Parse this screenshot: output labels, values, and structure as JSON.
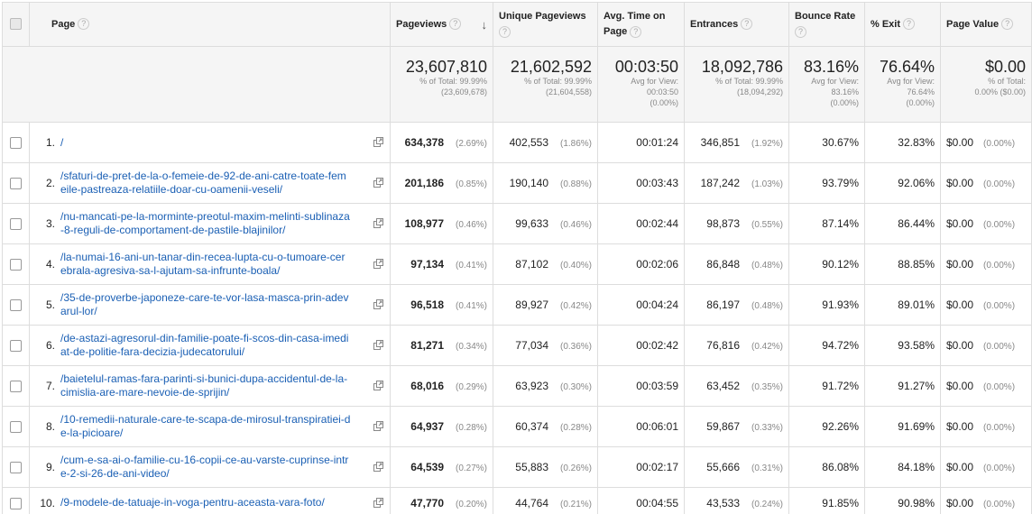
{
  "headers": {
    "page": "Page",
    "pageviews": "Pageviews",
    "unique_pageviews": "Unique Pageviews",
    "avg_time": "Avg. Time on Page",
    "entrances": "Entrances",
    "bounce_rate": "Bounce Rate",
    "exit": "% Exit",
    "page_value": "Page Value"
  },
  "summary": {
    "pageviews": {
      "value": "23,607,810",
      "line1": "% of Total: 99.99%",
      "line2": "(23,609,678)"
    },
    "unique_pageviews": {
      "value": "21,602,592",
      "line1": "% of Total: 99.99%",
      "line2": "(21,604,558)"
    },
    "avg_time": {
      "value": "00:03:50",
      "line1": "Avg for View:",
      "line2": "00:03:50",
      "line3": "(0.00%)"
    },
    "entrances": {
      "value": "18,092,786",
      "line1": "% of Total: 99.99%",
      "line2": "(18,094,292)"
    },
    "bounce_rate": {
      "value": "83.16%",
      "line1": "Avg for View:",
      "line2": "83.16%",
      "line3": "(0.00%)"
    },
    "exit": {
      "value": "76.64%",
      "line1": "Avg for View:",
      "line2": "76.64%",
      "line3": "(0.00%)"
    },
    "page_value": {
      "value": "$0.00",
      "line1": "% of Total:",
      "line2": "0.00% ($0.00)"
    }
  },
  "rows": [
    {
      "idx": "1.",
      "page": "/",
      "pv": "634,378",
      "pv_pct": "(2.69%)",
      "upv": "402,553",
      "upv_pct": "(1.86%)",
      "time": "00:01:24",
      "ent": "346,851",
      "ent_pct": "(1.92%)",
      "bounce": "30.67%",
      "exit": "32.83%",
      "value": "$0.00",
      "value_pct": "(0.00%)"
    },
    {
      "idx": "2.",
      "page": "/sfaturi-de-pret-de-la-o-femeie-de-92-de-ani-catre-toate-femeile-pastreaza-relatiile-doar-cu-oamenii-veseli/",
      "pv": "201,186",
      "pv_pct": "(0.85%)",
      "upv": "190,140",
      "upv_pct": "(0.88%)",
      "time": "00:03:43",
      "ent": "187,242",
      "ent_pct": "(1.03%)",
      "bounce": "93.79%",
      "exit": "92.06%",
      "value": "$0.00",
      "value_pct": "(0.00%)"
    },
    {
      "idx": "3.",
      "page": "/nu-mancati-pe-la-morminte-preotul-maxim-melinti-sublinaza-8-reguli-de-comportament-de-pastile-blajinilor/",
      "pv": "108,977",
      "pv_pct": "(0.46%)",
      "upv": "99,633",
      "upv_pct": "(0.46%)",
      "time": "00:02:44",
      "ent": "98,873",
      "ent_pct": "(0.55%)",
      "bounce": "87.14%",
      "exit": "86.44%",
      "value": "$0.00",
      "value_pct": "(0.00%)"
    },
    {
      "idx": "4.",
      "page": "/la-numai-16-ani-un-tanar-din-recea-lupta-cu-o-tumoare-cerebrala-agresiva-sa-l-ajutam-sa-infrunte-boala/",
      "pv": "97,134",
      "pv_pct": "(0.41%)",
      "upv": "87,102",
      "upv_pct": "(0.40%)",
      "time": "00:02:06",
      "ent": "86,848",
      "ent_pct": "(0.48%)",
      "bounce": "90.12%",
      "exit": "88.85%",
      "value": "$0.00",
      "value_pct": "(0.00%)"
    },
    {
      "idx": "5.",
      "page": "/35-de-proverbe-japoneze-care-te-vor-lasa-masca-prin-adevarul-lor/",
      "pv": "96,518",
      "pv_pct": "(0.41%)",
      "upv": "89,927",
      "upv_pct": "(0.42%)",
      "time": "00:04:24",
      "ent": "86,197",
      "ent_pct": "(0.48%)",
      "bounce": "91.93%",
      "exit": "89.01%",
      "value": "$0.00",
      "value_pct": "(0.00%)"
    },
    {
      "idx": "6.",
      "page": "/de-astazi-agresorul-din-familie-poate-fi-scos-din-casa-imediat-de-politie-fara-decizia-judecatorului/",
      "pv": "81,271",
      "pv_pct": "(0.34%)",
      "upv": "77,034",
      "upv_pct": "(0.36%)",
      "time": "00:02:42",
      "ent": "76,816",
      "ent_pct": "(0.42%)",
      "bounce": "94.72%",
      "exit": "93.58%",
      "value": "$0.00",
      "value_pct": "(0.00%)"
    },
    {
      "idx": "7.",
      "page": "/baietelul-ramas-fara-parinti-si-bunici-dupa-accidentul-de-la-cimislia-are-mare-nevoie-de-sprijin/",
      "pv": "68,016",
      "pv_pct": "(0.29%)",
      "upv": "63,923",
      "upv_pct": "(0.30%)",
      "time": "00:03:59",
      "ent": "63,452",
      "ent_pct": "(0.35%)",
      "bounce": "91.72%",
      "exit": "91.27%",
      "value": "$0.00",
      "value_pct": "(0.00%)"
    },
    {
      "idx": "8.",
      "page": "/10-remedii-naturale-care-te-scapa-de-mirosul-transpiratiei-de-la-picioare/",
      "pv": "64,937",
      "pv_pct": "(0.28%)",
      "upv": "60,374",
      "upv_pct": "(0.28%)",
      "time": "00:06:01",
      "ent": "59,867",
      "ent_pct": "(0.33%)",
      "bounce": "92.26%",
      "exit": "91.69%",
      "value": "$0.00",
      "value_pct": "(0.00%)"
    },
    {
      "idx": "9.",
      "page": "/cum-e-sa-ai-o-familie-cu-16-copii-ce-au-varste-cuprinse-intre-2-si-26-de-ani-video/",
      "pv": "64,539",
      "pv_pct": "(0.27%)",
      "upv": "55,883",
      "upv_pct": "(0.26%)",
      "time": "00:02:17",
      "ent": "55,666",
      "ent_pct": "(0.31%)",
      "bounce": "86.08%",
      "exit": "84.18%",
      "value": "$0.00",
      "value_pct": "(0.00%)"
    },
    {
      "idx": "10.",
      "page": "/9-modele-de-tatuaje-in-voga-pentru-aceasta-vara-foto/",
      "pv": "47,770",
      "pv_pct": "(0.20%)",
      "upv": "44,764",
      "upv_pct": "(0.21%)",
      "time": "00:04:55",
      "ent": "43,533",
      "ent_pct": "(0.24%)",
      "bounce": "91.85%",
      "exit": "90.98%",
      "value": "$0.00",
      "value_pct": "(0.00%)"
    }
  ]
}
